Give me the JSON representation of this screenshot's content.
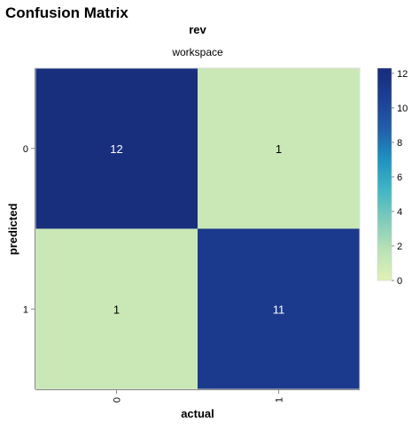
{
  "chart_data": {
    "type": "heatmap",
    "title": "Confusion Matrix",
    "facet_title": "rev",
    "subtitle": "workspace",
    "xlabel": "actual",
    "ylabel": "predicted",
    "x_categories": [
      "0",
      "1"
    ],
    "y_categories": [
      "0",
      "1"
    ],
    "cells": [
      {
        "actual": "0",
        "predicted": "0",
        "value": 12
      },
      {
        "actual": "1",
        "predicted": "0",
        "value": 1
      },
      {
        "actual": "0",
        "predicted": "1",
        "value": 1
      },
      {
        "actual": "1",
        "predicted": "1",
        "value": 11
      }
    ],
    "colorbar": {
      "min": 0,
      "max": 12.3,
      "ticks": [
        0,
        2,
        4,
        6,
        8,
        10,
        12
      ],
      "scheme": "yellowgreenblue",
      "colors": [
        "#e1f1b6",
        "#b9e2b6",
        "#7fcbbb",
        "#40b5c4",
        "#1f91c0",
        "#225ea8",
        "#1d3f94",
        "#172c7a"
      ]
    },
    "text_colors": {
      "light": "#ffffff",
      "dark": "#000000"
    }
  }
}
